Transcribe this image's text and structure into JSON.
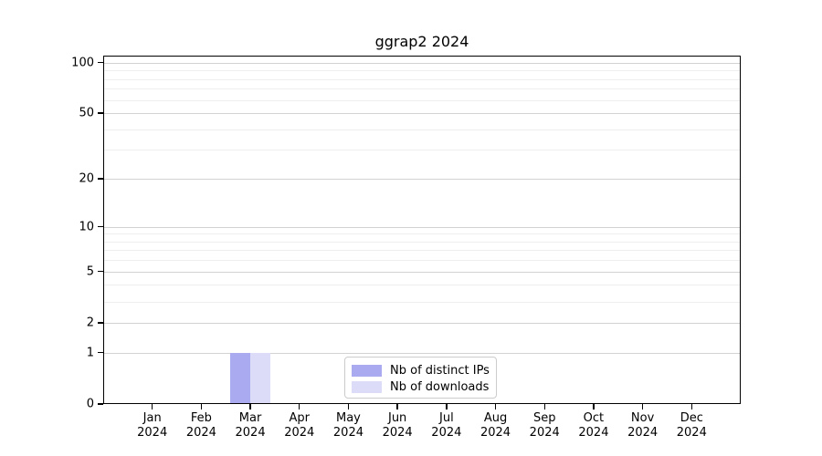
{
  "chart_data": {
    "type": "bar",
    "title": "ggrap2 2024",
    "categories": [
      "Jan",
      "Feb",
      "Mar",
      "Apr",
      "May",
      "Jun",
      "Jul",
      "Aug",
      "Sep",
      "Oct",
      "Nov",
      "Dec"
    ],
    "x_tick_year": "2024",
    "series": [
      {
        "name": "Nb of distinct IPs",
        "color": "#aaaaf0",
        "values": [
          0,
          0,
          1,
          0,
          0,
          0,
          0,
          0,
          0,
          0,
          0,
          0
        ]
      },
      {
        "name": "Nb of downloads",
        "color": "#dcdcf8",
        "values": [
          0,
          0,
          1,
          0,
          0,
          0,
          0,
          0,
          0,
          0,
          0,
          0
        ]
      }
    ],
    "yscale": "log1p",
    "ylim": [
      0,
      110
    ],
    "y_major_ticks": [
      0,
      1,
      2,
      5,
      10,
      20,
      50,
      100
    ],
    "y_minor_gridlines": [
      3,
      4,
      6,
      7,
      8,
      9,
      30,
      40,
      60,
      70,
      80,
      90
    ],
    "grid": true,
    "legend_position": "lower center"
  },
  "colors": {
    "bar_distinct_ips": "#aaaaf0",
    "bar_downloads": "#dcdcf8",
    "grid_major": "#d2d2d2",
    "grid_minor": "#eeeeee",
    "axis": "#000000",
    "text": "#000000",
    "legend_border": "#cccccc",
    "background": "#ffffff"
  }
}
